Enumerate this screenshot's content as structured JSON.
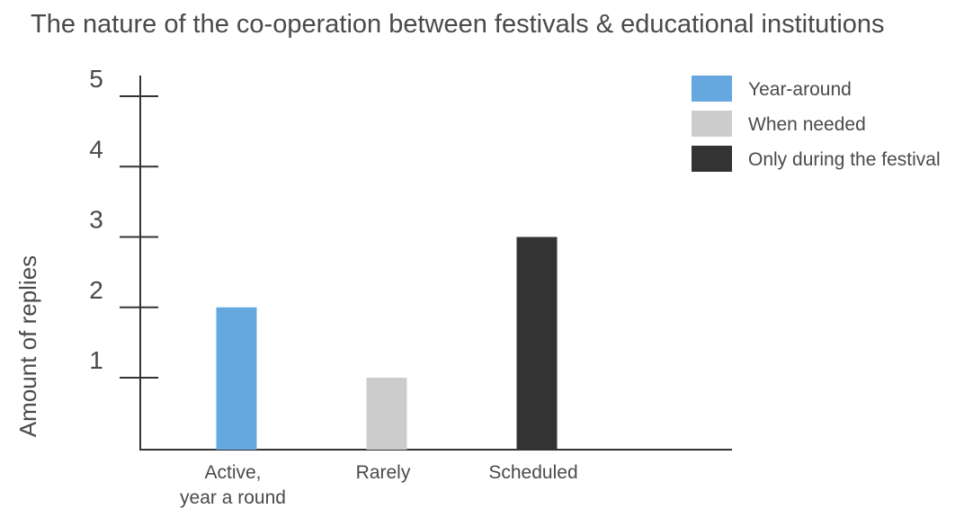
{
  "chart_data": {
    "type": "bar",
    "title": "The nature of the co-operation between festivals & educational institutions",
    "ylabel": "Amount of replies",
    "xlabel": "",
    "ylim": [
      0,
      5
    ],
    "yticks": [
      1,
      2,
      3,
      4,
      5
    ],
    "categories": [
      [
        "Active,",
        "year a round"
      ],
      [
        "Rarely"
      ],
      [
        "Scheduled"
      ]
    ],
    "values": [
      2,
      1,
      3
    ],
    "bar_colors": [
      "#64a8df",
      "#cccccc",
      "#333333"
    ],
    "legend": [
      {
        "label": "Year-around",
        "color": "#64a8df"
      },
      {
        "label": "When needed",
        "color": "#cccccc"
      },
      {
        "label": "Only during the festival",
        "color": "#333333"
      }
    ],
    "legend_position": "top-right",
    "grid": false
  }
}
